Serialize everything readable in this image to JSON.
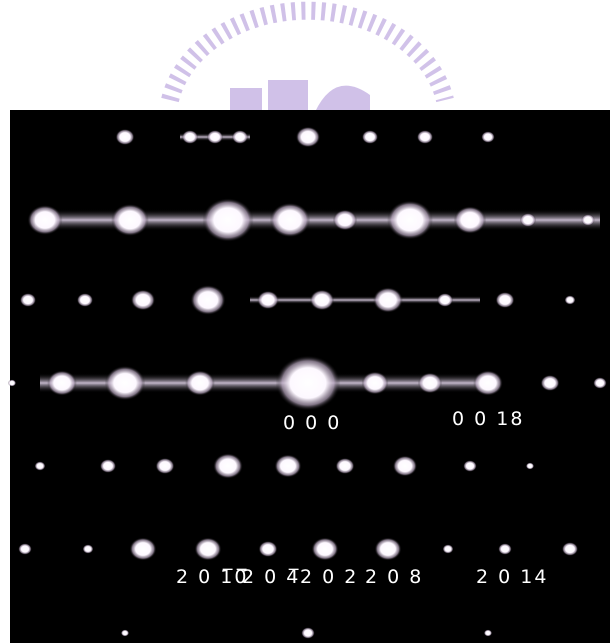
{
  "labels": {
    "origin": "0 0 0",
    "spot_0018": "0 0 18",
    "spot_2010": "2 0 1̅0̅",
    "spot_204": "2 0 4̅",
    "spot_202": "2 0 2",
    "spot_208": "2 0 8",
    "spot_2014": "2 0 14"
  }
}
